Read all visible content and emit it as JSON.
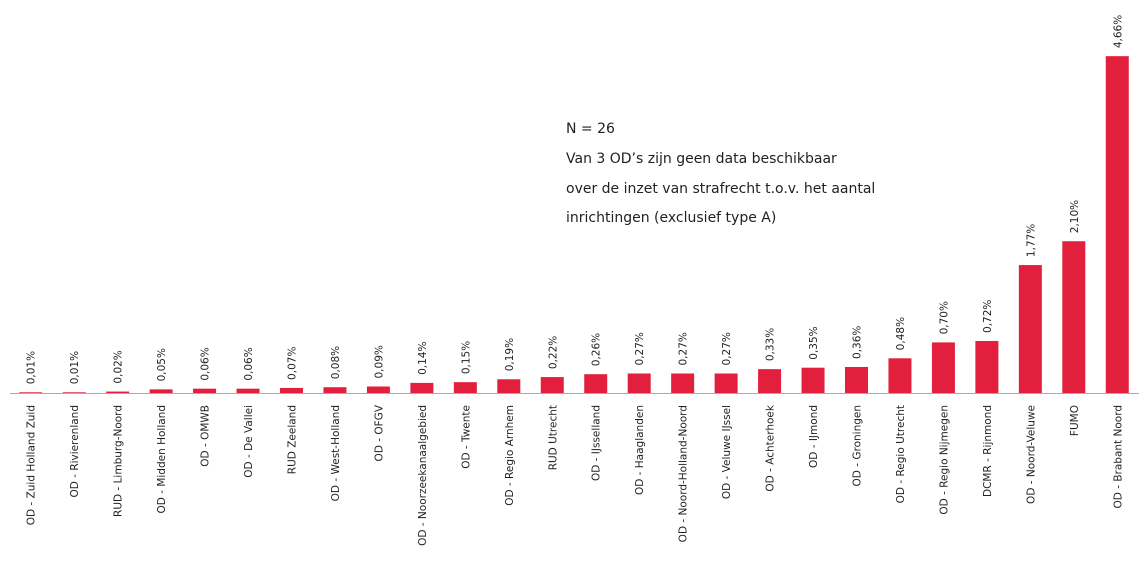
{
  "chart_data": {
    "type": "bar",
    "categories": [
      "OD - Zuid Holland Zuid",
      "OD - Rivierenland",
      "RUD - Limburg-Noord",
      "OD - Midden Holland",
      "OD - OMWB",
      "OD - De Vallei",
      "RUD Zeeland",
      "OD - West-Holland",
      "OD - OFGV",
      "OD - Noorzeekanaalgebied",
      "OD - Twente",
      "OD - Regio Arnhem",
      "RUD Utrecht",
      "OD - IJsselland",
      "OD - Haaglanden",
      "OD - Noord-Holland-Noord",
      "OD - Veluwe IJssel",
      "OD - Achterhoek",
      "OD - IJmond",
      "OD - Groningen",
      "OD - Regio Utrecht",
      "OD - Regio Nijmegen",
      "DCMR - Rijnmond",
      "OD - Noord-Veluwe",
      "FUMO",
      "OD - Brabant Noord"
    ],
    "values": [
      0.01,
      0.01,
      0.02,
      0.05,
      0.06,
      0.06,
      0.07,
      0.08,
      0.09,
      0.14,
      0.15,
      0.19,
      0.22,
      0.26,
      0.27,
      0.27,
      0.27,
      0.33,
      0.35,
      0.36,
      0.48,
      0.7,
      0.72,
      1.77,
      2.1,
      4.66
    ],
    "value_labels": [
      "0,01%",
      "0,01%",
      "0,02%",
      "0,05%",
      "0,06%",
      "0,06%",
      "0,07%",
      "0,08%",
      "0,09%",
      "0,14%",
      "0,15%",
      "0,19%",
      "0,22%",
      "0,26%",
      "0,27%",
      "0,27%",
      "0,27%",
      "0,33%",
      "0,35%",
      "0,36%",
      "0,48%",
      "0,70%",
      "0,72%",
      "1,77%",
      "2,10%",
      "4,66%"
    ],
    "color": "#e2203d",
    "ylim": [
      0,
      5
    ],
    "annotation": [
      "N = 26",
      "Van 3 OD’s zijn geen data beschikbaar",
      "over de inzet van strafrecht t.o.v. het aantal",
      "inrichtingen (exclusief type A)"
    ]
  }
}
